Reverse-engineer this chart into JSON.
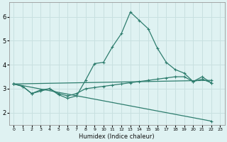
{
  "xlabel": "Humidex (Indice chaleur)",
  "xlim": [
    -0.5,
    23.5
  ],
  "ylim": [
    1.5,
    6.6
  ],
  "yticks": [
    2,
    3,
    4,
    5,
    6
  ],
  "xticks": [
    0,
    1,
    2,
    3,
    4,
    5,
    6,
    7,
    8,
    9,
    10,
    11,
    12,
    13,
    14,
    15,
    16,
    17,
    18,
    19,
    20,
    21,
    22,
    23
  ],
  "background_color": "#dff2f2",
  "grid_color": "#c8e0e0",
  "line_color": "#2e7d6e",
  "lines": [
    {
      "x": [
        0,
        1,
        2,
        3,
        4,
        5,
        6,
        7,
        8,
        9,
        10,
        11,
        12,
        13,
        14,
        15,
        16,
        17,
        18,
        19,
        20,
        21,
        22,
        23
      ],
      "y": [
        3.2,
        3.1,
        2.8,
        2.9,
        3.0,
        2.75,
        2.6,
        2.7,
        3.35,
        4.05,
        4.1,
        4.75,
        5.3,
        6.2,
        5.85,
        5.5,
        4.7,
        4.1,
        3.8,
        3.65,
        3.3,
        3.5,
        3.25,
        null
      ]
    },
    {
      "x": [
        0,
        1,
        2,
        3,
        4,
        5,
        6,
        7,
        8,
        9,
        10,
        11,
        12,
        13,
        14,
        15,
        16,
        17,
        18,
        19,
        20,
        21,
        22,
        23
      ],
      "y": [
        3.2,
        3.1,
        2.8,
        2.95,
        3.0,
        2.8,
        2.7,
        2.8,
        3.0,
        3.05,
        3.1,
        3.15,
        3.2,
        3.25,
        3.3,
        3.35,
        3.4,
        3.45,
        3.5,
        3.5,
        3.3,
        3.4,
        3.25,
        null
      ]
    },
    {
      "x": [
        0,
        22
      ],
      "y": [
        3.2,
        1.65
      ]
    },
    {
      "x": [
        0,
        22
      ],
      "y": [
        3.2,
        3.35
      ]
    }
  ]
}
